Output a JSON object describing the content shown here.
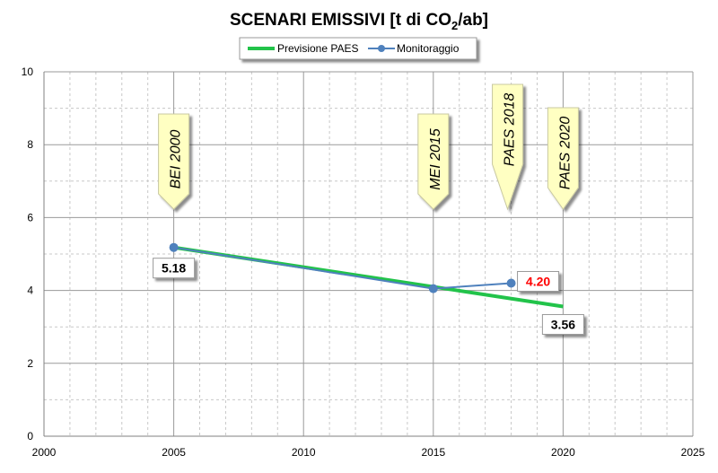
{
  "chart_data": {
    "type": "line",
    "title": "SCENARI EMISSIVI [t di CO2/ab]",
    "title_parts": {
      "before": "SCENARI EMISSIVI [t di CO",
      "sub": "2",
      "after": "/ab]"
    },
    "xlim": [
      2000,
      2025
    ],
    "ylim": [
      0,
      10
    ],
    "x_ticks": [
      "2000",
      "2005",
      "2010",
      "2015",
      "2020",
      "2025"
    ],
    "y_ticks": [
      "0",
      "2",
      "4",
      "6",
      "8",
      "10"
    ],
    "grid": true,
    "legend_position": "top-center",
    "series": [
      {
        "name": "Previsione PAES",
        "color": "#22c34a",
        "points": [
          {
            "x": 2005,
            "y": 5.18
          },
          {
            "x": 2020,
            "y": 3.56
          }
        ]
      },
      {
        "name": "Monitoraggio",
        "color": "#4f81bd",
        "points": [
          {
            "x": 2005,
            "y": 5.18
          },
          {
            "x": 2015,
            "y": 4.05
          },
          {
            "x": 2018,
            "y": 4.2
          }
        ]
      }
    ],
    "data_labels": [
      {
        "text": "5.18",
        "x": 2005,
        "y": 5.18,
        "color": "#000000"
      },
      {
        "text": "4.20",
        "x": 2018,
        "y": 4.2,
        "color": "#ff0000"
      },
      {
        "text": "3.56",
        "x": 2020,
        "y": 3.56,
        "color": "#000000"
      }
    ],
    "milestones": [
      {
        "text": "BEI 2000",
        "x": 2005
      },
      {
        "text": "MEI 2015",
        "x": 2015
      },
      {
        "text": "PAES 2018",
        "x": 2018
      },
      {
        "text": "PAES 2020",
        "x": 2020
      }
    ]
  }
}
